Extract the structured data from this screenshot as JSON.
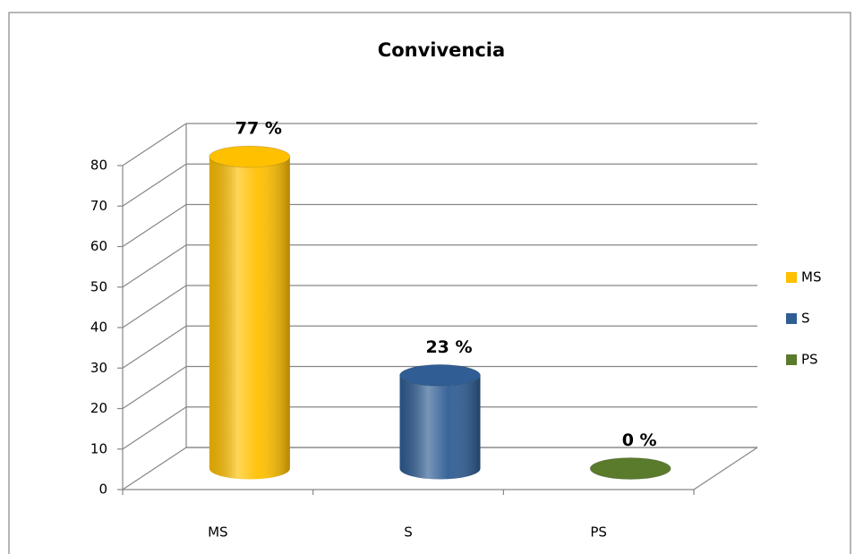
{
  "chart_data": {
    "type": "bar3d",
    "title": "Convivencia",
    "categories": [
      "MS",
      "S",
      "PS"
    ],
    "values": [
      77,
      23,
      0
    ],
    "value_labels": [
      "77 %",
      "23 %",
      "0 %"
    ],
    "colors": [
      "#ffc000",
      "#2f5d94",
      "#5b7b2c"
    ],
    "ylim": [
      0,
      80
    ],
    "yticks": [
      0,
      10,
      20,
      30,
      40,
      50,
      60,
      70,
      80
    ],
    "grid": true,
    "legend": "right"
  }
}
